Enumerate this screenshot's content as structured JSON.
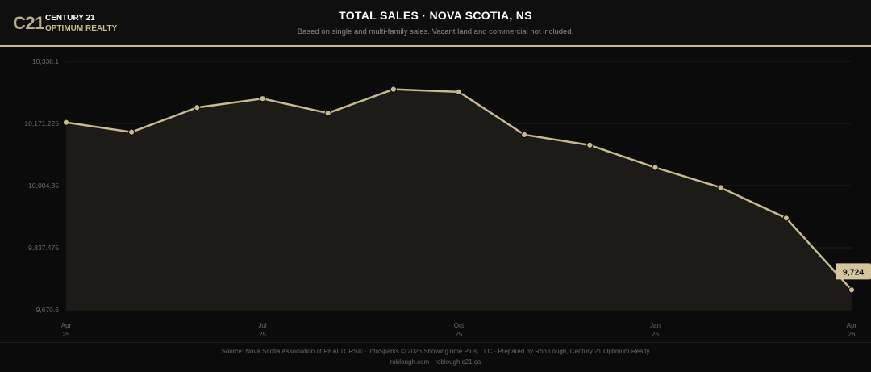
{
  "header": {
    "logo_mark": "C21",
    "logo_line1": "CENTURY 21",
    "logo_line2": "OPTIMUM REALTY",
    "title": "TOTAL SALES · NOVA SCOTIA, NS",
    "subtitle": "Based on single and multi-family sales. Vacant land and commercial not included."
  },
  "footer": {
    "line1": "Source: Nova Scotia Association of REALTORS® · InfoSparks © 2026 ShowingTime Plus, LLC · Prepared by Rob Lough, Century 21 Optimum Realty",
    "line2": "roblough.com · roblough.c21.ca"
  },
  "colors": {
    "line": "#c8b98f",
    "marker": "#c8b98f",
    "area": "#1c1b18",
    "grid": "#1f1f1f",
    "badge_bg": "#d4c59c",
    "badge_text": "#111111"
  },
  "chart_data": {
    "type": "line",
    "x": [
      "2025-04",
      "2025-05",
      "2025-06",
      "2025-07",
      "2025-08",
      "2025-09",
      "2025-10",
      "2025-11",
      "2025-12",
      "2026-01",
      "2026-02",
      "2026-03",
      "2026-04"
    ],
    "values": [
      10174,
      10148,
      10214,
      10238,
      10199,
      10263,
      10256,
      10141,
      10113,
      10053,
      9999,
      9917,
      9724
    ],
    "ylim": [
      9670.6,
      10338.1
    ],
    "yticks": [
      "10,338.1",
      "10,171.225",
      "10,004.35",
      "9,837.475",
      "9,670.6"
    ],
    "ytick_values": [
      10338.1,
      10171.225,
      10004.35,
      9837.475,
      9670.6
    ],
    "xticks": [
      {
        "index": 0,
        "line1": "Apr",
        "line2": "25"
      },
      {
        "index": 3,
        "line1": "Jul",
        "line2": "25"
      },
      {
        "index": 6,
        "line1": "Oct",
        "line2": "25"
      },
      {
        "index": 9,
        "line1": "Jan",
        "line2": "26"
      },
      {
        "index": 12,
        "line1": "Apr",
        "line2": "26"
      }
    ],
    "callout": {
      "index": 12,
      "label": "9,724"
    },
    "grid": true,
    "legend": "none"
  }
}
